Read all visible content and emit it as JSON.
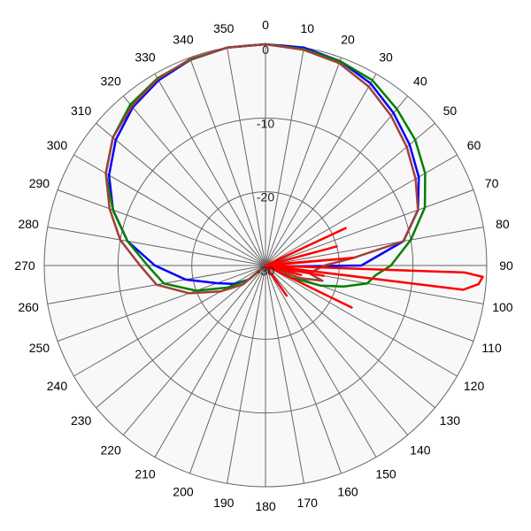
{
  "chart_data": {
    "type": "polar-line",
    "title": "",
    "angle_unit": "degrees",
    "angle_direction": "clockwise",
    "zero_at": "top",
    "angle_ticks": [
      0,
      10,
      20,
      30,
      40,
      50,
      60,
      70,
      80,
      90,
      100,
      110,
      120,
      130,
      140,
      150,
      160,
      170,
      180,
      190,
      200,
      210,
      220,
      230,
      240,
      250,
      260,
      270,
      280,
      290,
      300,
      310,
      320,
      330,
      340,
      350
    ],
    "radial_ticks": [
      0,
      -10,
      -20,
      -30
    ],
    "radial_range": [
      -30,
      0
    ],
    "grid": true,
    "legend": "none",
    "series": [
      {
        "color": "#0000ff",
        "points": [
          [
            0,
            0
          ],
          [
            10,
            0
          ],
          [
            20,
            -0.5
          ],
          [
            30,
            -1.5
          ],
          [
            40,
            -3
          ],
          [
            50,
            -4.5
          ],
          [
            60,
            -6
          ],
          [
            70,
            -8
          ],
          [
            80,
            -11
          ],
          [
            90,
            -17
          ],
          [
            100,
            -29
          ],
          [
            110,
            -30
          ],
          [
            200,
            -30
          ],
          [
            230,
            -27
          ],
          [
            240,
            -25
          ],
          [
            250,
            -23
          ],
          [
            260,
            -19
          ],
          [
            270,
            -15
          ],
          [
            280,
            -11
          ],
          [
            290,
            -8
          ],
          [
            300,
            -5.5
          ],
          [
            310,
            -3.5
          ],
          [
            320,
            -2
          ],
          [
            330,
            -1
          ],
          [
            340,
            -0.3
          ],
          [
            350,
            0
          ]
        ]
      },
      {
        "color": "#008000",
        "points": [
          [
            0,
            0
          ],
          [
            10,
            -0.2
          ],
          [
            20,
            -0.5
          ],
          [
            30,
            -1
          ],
          [
            40,
            -2.3
          ],
          [
            50,
            -3.5
          ],
          [
            60,
            -5
          ],
          [
            70,
            -7
          ],
          [
            80,
            -10
          ],
          [
            90,
            -13
          ],
          [
            95,
            -15
          ],
          [
            100,
            -16
          ],
          [
            105,
            -19
          ],
          [
            110,
            -22
          ],
          [
            115,
            -26
          ],
          [
            120,
            -30
          ],
          [
            200,
            -30
          ],
          [
            230,
            -27
          ],
          [
            240,
            -24
          ],
          [
            250,
            -20
          ],
          [
            260,
            -16
          ],
          [
            270,
            -14
          ],
          [
            280,
            -11
          ],
          [
            290,
            -8
          ],
          [
            300,
            -5
          ],
          [
            310,
            -3
          ],
          [
            320,
            -1.5
          ],
          [
            330,
            -0.7
          ],
          [
            340,
            -0.3
          ],
          [
            350,
            0
          ]
        ]
      },
      {
        "color": "#a0403a",
        "points": [
          [
            0,
            0
          ],
          [
            10,
            -0.3
          ],
          [
            20,
            -0.8
          ],
          [
            30,
            -2
          ],
          [
            40,
            -3.5
          ],
          [
            50,
            -5
          ],
          [
            60,
            -6.5
          ],
          [
            70,
            -8
          ],
          [
            80,
            -11
          ],
          [
            85,
            -18
          ],
          [
            90,
            -22
          ],
          [
            100,
            -24
          ],
          [
            105,
            -22
          ],
          [
            110,
            -25
          ],
          [
            115,
            -30
          ],
          [
            200,
            -30
          ],
          [
            230,
            -26
          ],
          [
            240,
            -23
          ],
          [
            250,
            -19
          ],
          [
            260,
            -15
          ],
          [
            270,
            -13
          ],
          [
            280,
            -10
          ],
          [
            290,
            -7.5
          ],
          [
            300,
            -5
          ],
          [
            310,
            -3
          ],
          [
            320,
            -1.8
          ],
          [
            330,
            -0.8
          ],
          [
            340,
            -0.2
          ],
          [
            350,
            0
          ]
        ]
      },
      {
        "color": "#ff0000",
        "points": [
          [
            0,
            -30
          ],
          [
            20,
            -30
          ],
          [
            55,
            -30
          ],
          [
            65,
            -18
          ],
          [
            67,
            -29.5
          ],
          [
            72,
            -30
          ],
          [
            75,
            -20
          ],
          [
            77,
            -29.5
          ],
          [
            85,
            -18
          ],
          [
            86,
            -29.5
          ],
          [
            88,
            -30
          ],
          [
            92,
            -3
          ],
          [
            93,
            -0.5
          ],
          [
            95,
            -1
          ],
          [
            97,
            -3
          ],
          [
            98,
            -30
          ],
          [
            100,
            -22
          ],
          [
            102,
            -30
          ],
          [
            103,
            -28
          ],
          [
            105,
            -25
          ],
          [
            107,
            -30
          ],
          [
            112,
            -30
          ],
          [
            116,
            -17
          ],
          [
            118,
            -30
          ],
          [
            125,
            -30
          ],
          [
            130,
            -30
          ],
          [
            145,
            -25
          ],
          [
            150,
            -30
          ],
          [
            180,
            -30
          ],
          [
            220,
            -30
          ],
          [
            240,
            -30
          ],
          [
            260,
            -30
          ],
          [
            290,
            -30
          ],
          [
            320,
            -30
          ],
          [
            350,
            -30
          ]
        ]
      }
    ]
  }
}
